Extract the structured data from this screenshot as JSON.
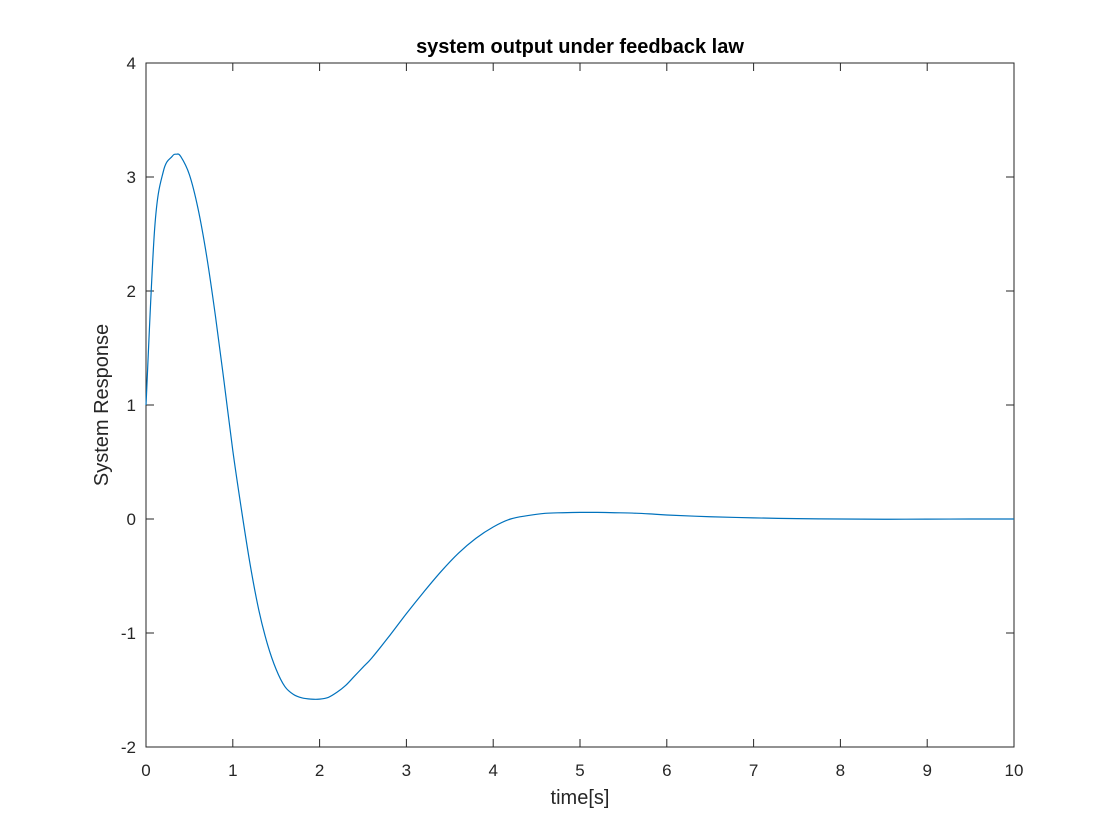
{
  "chart_data": {
    "type": "line",
    "title": "system output under feedback law",
    "xlabel": "time[s]",
    "ylabel": "System Response",
    "xlim": [
      0,
      10
    ],
    "ylim": [
      -2,
      4
    ],
    "x_ticks": [
      0,
      1,
      2,
      3,
      4,
      5,
      6,
      7,
      8,
      9,
      10
    ],
    "x_tick_labels": [
      "0",
      "1",
      "2",
      "3",
      "4",
      "5",
      "6",
      "7",
      "8",
      "9",
      "10"
    ],
    "y_ticks": [
      -2,
      -1,
      0,
      1,
      2,
      3,
      4
    ],
    "y_tick_labels": [
      "-2",
      "-1",
      "0",
      "1",
      "2",
      "3",
      "4"
    ],
    "grid": false,
    "box": true,
    "series": [
      {
        "color": "#0072bd",
        "x": [
          0,
          0.1,
          0.2,
          0.3,
          0.35,
          0.4,
          0.5,
          0.6,
          0.7,
          0.8,
          0.9,
          1.0,
          1.1,
          1.2,
          1.3,
          1.4,
          1.5,
          1.6,
          1.7,
          1.8,
          1.9,
          2.0,
          2.1,
          2.2,
          2.3,
          2.4,
          2.5,
          2.6,
          2.8,
          3.0,
          3.2,
          3.4,
          3.6,
          3.8,
          4.0,
          4.2,
          4.4,
          4.6,
          4.8,
          5.0,
          5.2,
          5.4,
          5.6,
          5.8,
          6.0,
          6.5,
          7.0,
          7.5,
          8.0,
          8.5,
          9.0,
          9.5,
          10.0
        ],
        "y": [
          1.0,
          2.55,
          3.05,
          3.18,
          3.2,
          3.18,
          3.02,
          2.72,
          2.3,
          1.78,
          1.2,
          0.6,
          0.08,
          -0.4,
          -0.8,
          -1.1,
          -1.32,
          -1.47,
          -1.54,
          -1.57,
          -1.58,
          -1.58,
          -1.565,
          -1.52,
          -1.46,
          -1.38,
          -1.3,
          -1.22,
          -1.03,
          -0.83,
          -0.64,
          -0.46,
          -0.3,
          -0.17,
          -0.07,
          0.0,
          0.03,
          0.05,
          0.055,
          0.058,
          0.058,
          0.055,
          0.052,
          0.045,
          0.035,
          0.02,
          0.01,
          0.003,
          0.0,
          -0.002,
          -0.001,
          0.0,
          0.0
        ]
      }
    ]
  }
}
